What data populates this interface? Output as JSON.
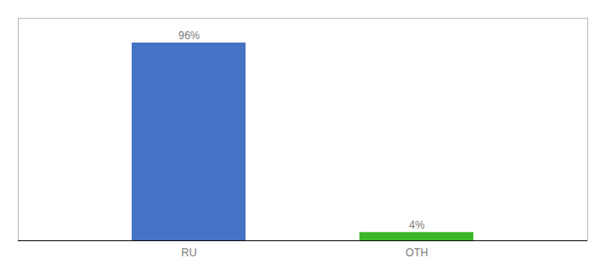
{
  "chart_data": {
    "type": "bar",
    "categories": [
      "RU",
      "OTH"
    ],
    "values": [
      96,
      4
    ],
    "value_labels": [
      "96%",
      "4%"
    ],
    "colors": [
      "#4472c4",
      "#3cb628"
    ],
    "ylim": [
      0,
      108
    ],
    "tick_labels": "x"
  }
}
